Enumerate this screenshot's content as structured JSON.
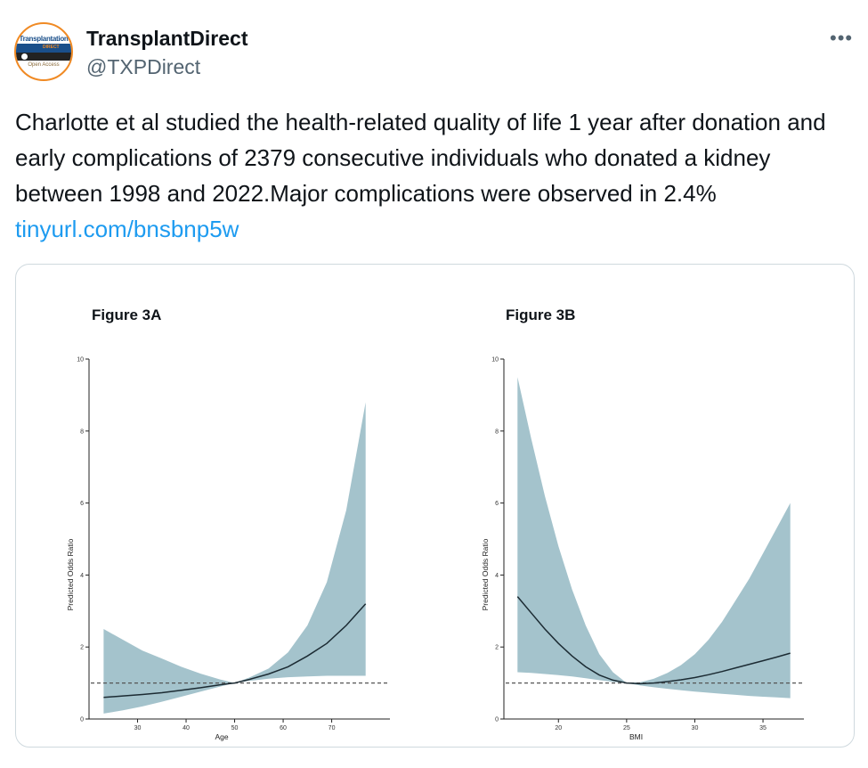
{
  "account": {
    "name": "TransplantDirect",
    "handle": "@TXPDirect",
    "avatar_text": "Transplantation",
    "avatar_subtext": "DIRECT",
    "avatar_oa": "Open Access",
    "more_icon": "more-icon"
  },
  "tweet": {
    "text": "Charlotte et al studied the health-related quality of life 1 year after donation and early complications of 2379 consecutive individuals who donated a kidney between 1998 and 2022.Major complications were observed in 2.4% ",
    "link": "tinyurl.com/bnsbnp5w"
  },
  "colors": {
    "band": "#a4c3cc",
    "line": "#1c2b33",
    "link": "#1d9bf0"
  },
  "chart_data": [
    {
      "type": "area",
      "title": "Figure 3A",
      "xlabel": "Age",
      "ylabel": "Predicted Odds Ratio",
      "xlim": [
        20,
        82
      ],
      "ylim": [
        0,
        10
      ],
      "xticks": [
        "30",
        "40",
        "50",
        "60",
        "70"
      ],
      "yticks": [
        "0",
        "2",
        "4",
        "6",
        "8",
        "10"
      ],
      "reference_line": 1,
      "x": [
        23,
        27,
        31,
        35,
        39,
        43,
        47,
        50,
        53,
        57,
        61,
        65,
        69,
        73,
        77
      ],
      "estimate": [
        0.6,
        0.64,
        0.68,
        0.73,
        0.8,
        0.87,
        0.95,
        1.0,
        1.1,
        1.25,
        1.45,
        1.75,
        2.1,
        2.6,
        3.2
      ],
      "lower": [
        0.15,
        0.24,
        0.35,
        0.48,
        0.62,
        0.76,
        0.9,
        1.0,
        1.06,
        1.12,
        1.16,
        1.18,
        1.2,
        1.2,
        1.2
      ],
      "upper": [
        2.5,
        2.2,
        1.9,
        1.68,
        1.45,
        1.26,
        1.1,
        1.0,
        1.15,
        1.4,
        1.85,
        2.6,
        3.8,
        5.8,
        8.8
      ]
    },
    {
      "type": "area",
      "title": "Figure 3B",
      "xlabel": "BMI",
      "ylabel": "Predicted Odds Ratio",
      "xlim": [
        16,
        38
      ],
      "ylim": [
        0,
        10
      ],
      "xticks": [
        "20",
        "25",
        "30",
        "35"
      ],
      "yticks": [
        "0",
        "2",
        "4",
        "6",
        "8",
        "10"
      ],
      "reference_line": 1,
      "x": [
        17,
        18,
        19,
        20,
        21,
        22,
        23,
        24,
        25,
        26,
        27,
        28,
        29,
        30,
        31,
        32,
        33,
        34,
        35,
        36,
        37
      ],
      "estimate": [
        3.4,
        2.95,
        2.5,
        2.1,
        1.75,
        1.45,
        1.22,
        1.08,
        1.0,
        0.98,
        1.0,
        1.04,
        1.09,
        1.15,
        1.23,
        1.32,
        1.42,
        1.52,
        1.62,
        1.72,
        1.83
      ],
      "lower": [
        1.3,
        1.28,
        1.25,
        1.22,
        1.18,
        1.13,
        1.08,
        1.03,
        1.0,
        0.93,
        0.88,
        0.84,
        0.8,
        0.76,
        0.73,
        0.7,
        0.67,
        0.64,
        0.62,
        0.6,
        0.58
      ],
      "upper": [
        9.5,
        7.8,
        6.2,
        4.8,
        3.6,
        2.6,
        1.8,
        1.3,
        1.0,
        1.02,
        1.12,
        1.28,
        1.5,
        1.8,
        2.2,
        2.7,
        3.3,
        3.9,
        4.6,
        5.3,
        6.0
      ]
    }
  ]
}
